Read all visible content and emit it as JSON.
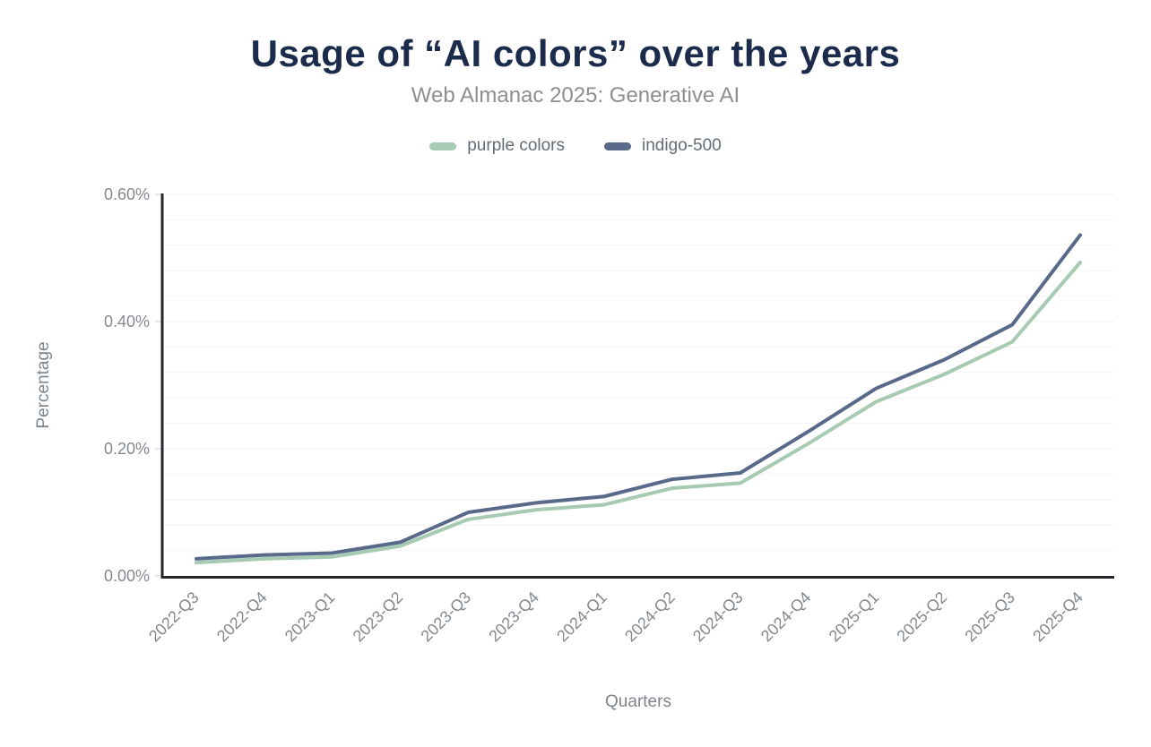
{
  "header": {
    "title": "Usage of “AI colors” over the years",
    "subtitle": "Web Almanac 2025: Generative AI"
  },
  "chart_data": {
    "type": "line",
    "title": "Usage of “AI colors” over the years",
    "subtitle": "Web Almanac 2025: Generative AI",
    "xlabel": "Quarters",
    "ylabel": "Percentage",
    "categories": [
      "2022-Q3",
      "2022-Q4",
      "2023-Q1",
      "2023-Q2",
      "2023-Q3",
      "2023-Q4",
      "2024-Q1",
      "2024-Q2",
      "2024-Q3",
      "2024-Q4",
      "2025-Q1",
      "2025-Q2",
      "2025-Q3",
      "2025-Q4"
    ],
    "series": [
      {
        "name": "purple colors",
        "color": "#a6cab2",
        "values_pct": [
          0.021,
          0.027,
          0.03,
          0.047,
          0.089,
          0.104,
          0.112,
          0.138,
          0.146,
          0.208,
          0.274,
          0.317,
          0.368,
          0.493
        ]
      },
      {
        "name": "indigo-500",
        "color": "#58698a",
        "values_pct": [
          0.027,
          0.033,
          0.036,
          0.053,
          0.1,
          0.115,
          0.125,
          0.152,
          0.162,
          0.227,
          0.295,
          0.34,
          0.395,
          0.536
        ]
      }
    ],
    "ylim": [
      0,
      0.6
    ],
    "y_major_ticks": [
      0,
      0.2,
      0.4,
      0.6
    ],
    "y_tick_labels": [
      "0.00%",
      "0.20%",
      "0.40%",
      "0.60%"
    ],
    "y_minor_step_pct": 0.04,
    "grid": "horizontal",
    "legend_position": "top",
    "line_width": 4,
    "markers": false
  },
  "styles": {
    "title_color": "#1a2b4c",
    "subtitle_color": "#8e8e8e",
    "axis_line_color": "#23262c",
    "grid_color": "#f2f2f2",
    "tick_mark_color": "#cbd0d4",
    "tick_label_color": "#84898f",
    "axis_title_color": "#7e848b",
    "legend_text_color": "#636c76",
    "background": "#ffffff"
  }
}
